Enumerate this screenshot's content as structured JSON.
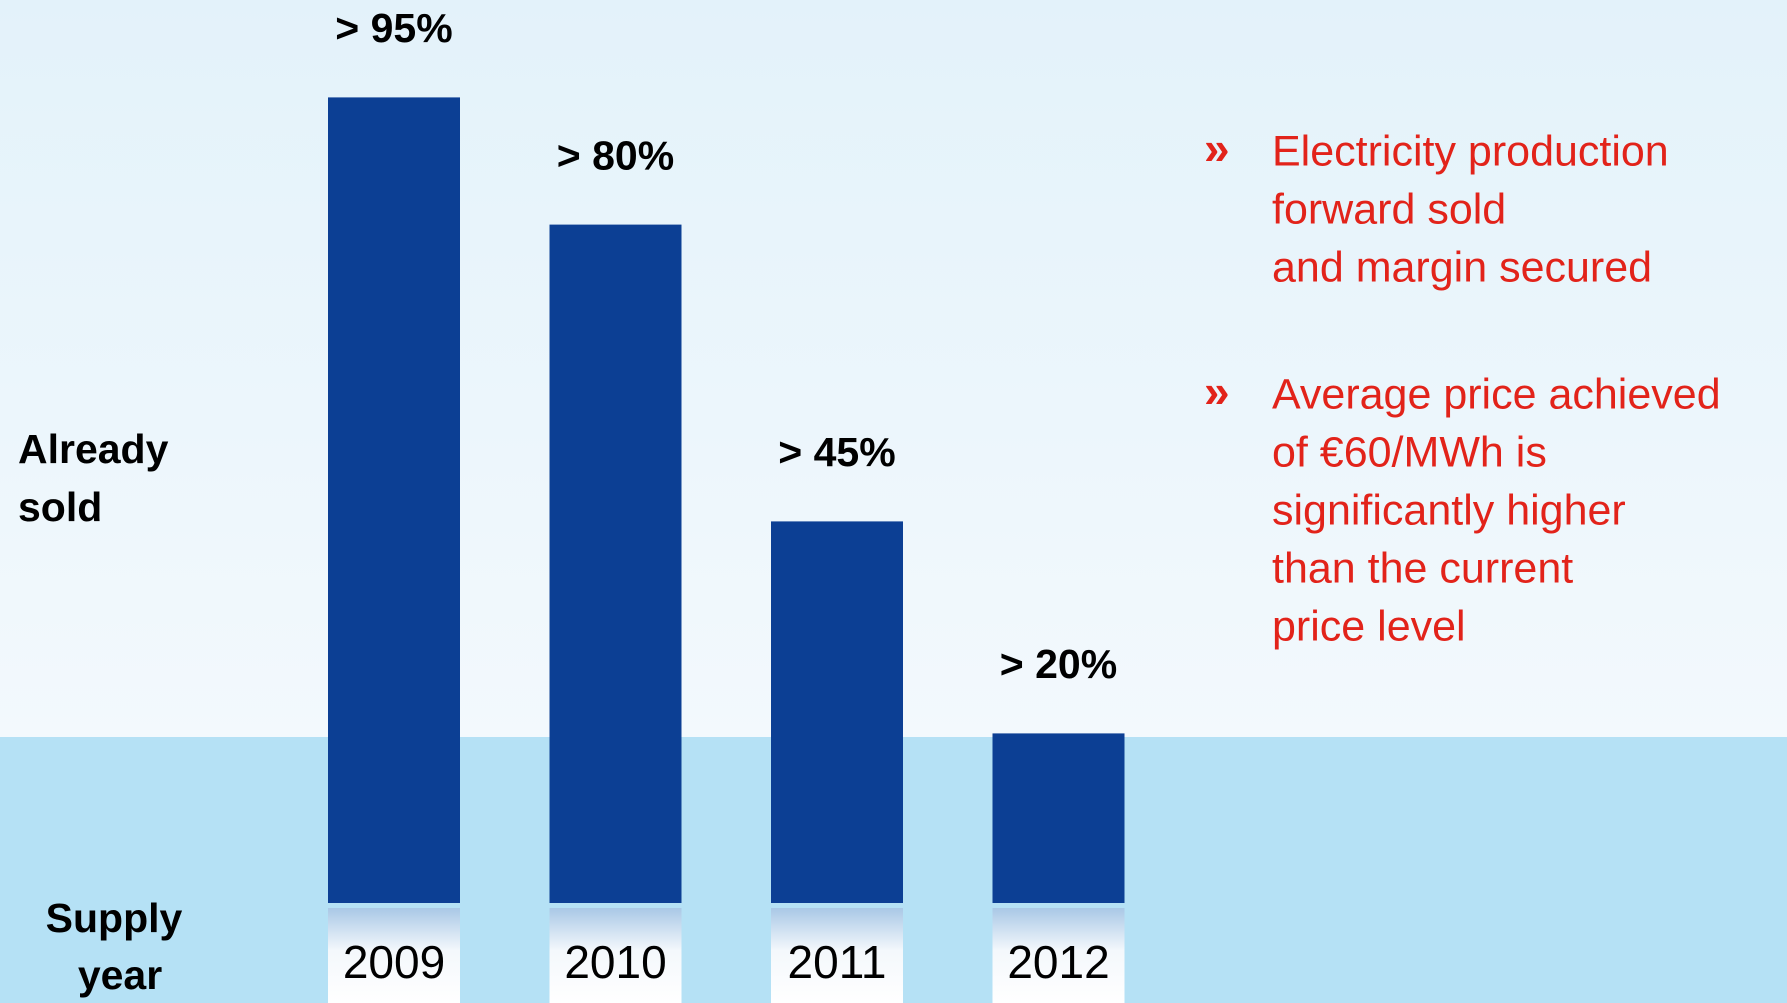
{
  "chart_data": {
    "type": "bar",
    "categories": [
      "2009",
      "2010",
      "2011",
      "2012"
    ],
    "values": [
      95,
      80,
      45,
      20
    ],
    "value_labels": [
      "> 95%",
      "> 80%",
      "> 45%",
      "> 20%"
    ],
    "color": "#0c3f94",
    "y_label_lines": [
      "Already",
      "sold"
    ],
    "x_label_lines": [
      "Supply",
      "year"
    ],
    "annotations": [
      [
        "Electricity production",
        "forward sold",
        "and margin secured"
      ],
      [
        "Average price achieved",
        "of €60/MWh is",
        "significantly higher",
        "than the current",
        "price level"
      ]
    ]
  }
}
